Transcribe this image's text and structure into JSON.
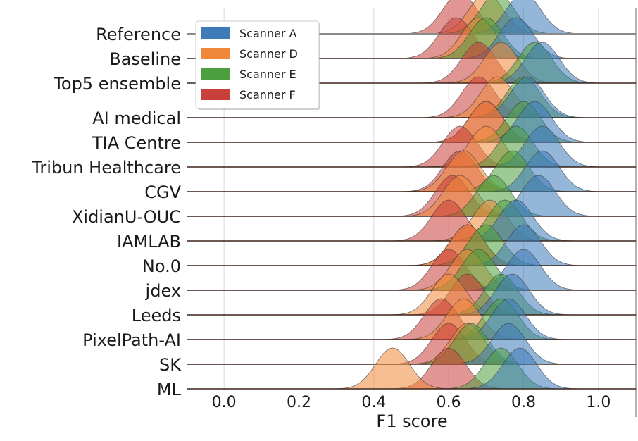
{
  "chart_data": {
    "type": "ridgeline",
    "xlabel": "F1 score",
    "xlim": [
      -0.1,
      1.1
    ],
    "xticks": [
      0.0,
      0.2,
      0.4,
      0.6,
      0.8,
      1.0
    ],
    "xtick_labels": [
      "0.0",
      "0.2",
      "0.4",
      "0.6",
      "0.8",
      "1.0"
    ],
    "grid": "vertical",
    "legend_position": "top-left",
    "series": [
      {
        "name": "Scanner A",
        "color": "#3d7ab8"
      },
      {
        "name": "Scanner D",
        "color": "#f0883a"
      },
      {
        "name": "Scanner E",
        "color": "#4c9e3e"
      },
      {
        "name": "Scanner F",
        "color": "#c9403a"
      }
    ],
    "categories": [
      "Reference",
      "Baseline",
      "Top5 ensemble",
      "AI medical",
      "TIA Centre",
      "Tribun Healthcare",
      "CGV",
      "XidianU-OUC",
      "IAMLAB",
      "No.0",
      "jdex",
      "Leeds",
      "PixelPath-AI",
      "SK",
      "ML"
    ],
    "distributions": [
      {
        "row": "Reference",
        "peaks": {
          "Scanner A": 0.8,
          "Scanner D": 0.7,
          "Scanner E": 0.73,
          "Scanner F": 0.63
        }
      },
      {
        "row": "Baseline",
        "peaks": {
          "Scanner A": 0.78,
          "Scanner D": 0.68,
          "Scanner E": 0.7,
          "Scanner F": 0.62
        }
      },
      {
        "row": "Top5 ensemble",
        "peaks": {
          "Scanner A": 0.85,
          "Scanner D": 0.74,
          "Scanner E": 0.83,
          "Scanner F": 0.68
        }
      },
      {
        "row": "AI medical",
        "peaks": {
          "Scanner A": 0.81,
          "Scanner D": 0.73,
          "Scanner E": 0.8,
          "Scanner F": 0.68
        }
      },
      {
        "row": "TIA Centre",
        "peaks": {
          "Scanner A": 0.83,
          "Scanner D": 0.7,
          "Scanner E": 0.8,
          "Scanner F": 0.7
        }
      },
      {
        "row": "Tribun Healthcare",
        "peaks": {
          "Scanner A": 0.85,
          "Scanner D": 0.7,
          "Scanner E": 0.78,
          "Scanner F": 0.63
        }
      },
      {
        "row": "CGV",
        "peaks": {
          "Scanner A": 0.85,
          "Scanner D": 0.64,
          "Scanner E": 0.77,
          "Scanner F": 0.63
        }
      },
      {
        "row": "XidianU-OUC",
        "peaks": {
          "Scanner A": 0.84,
          "Scanner D": 0.63,
          "Scanner E": 0.72,
          "Scanner F": 0.61
        }
      },
      {
        "row": "IAMLAB",
        "peaks": {
          "Scanner A": 0.78,
          "Scanner D": 0.71,
          "Scanner E": 0.75,
          "Scanner F": 0.6
        }
      },
      {
        "row": "No.0",
        "peaks": {
          "Scanner A": 0.8,
          "Scanner D": 0.65,
          "Scanner E": 0.7,
          "Scanner F": 0.65
        }
      },
      {
        "row": "jdex",
        "peaks": {
          "Scanner A": 0.8,
          "Scanner D": 0.65,
          "Scanner E": 0.68,
          "Scanner F": 0.6
        }
      },
      {
        "row": "Leeds",
        "peaks": {
          "Scanner A": 0.77,
          "Scanner D": 0.6,
          "Scanner E": 0.74,
          "Scanner F": 0.65
        }
      },
      {
        "row": "PixelPath-AI",
        "peaks": {
          "Scanner A": 0.76,
          "Scanner D": 0.64,
          "Scanner E": 0.74,
          "Scanner F": 0.58
        }
      },
      {
        "row": "SK",
        "peaks": {
          "Scanner A": 0.76,
          "Scanner D": 0.65,
          "Scanner E": 0.66,
          "Scanner F": 0.6
        }
      },
      {
        "row": "ML",
        "peaks": {
          "Scanner A": 0.79,
          "Scanner D": 0.45,
          "Scanner E": 0.74,
          "Scanner F": 0.6
        }
      }
    ]
  }
}
